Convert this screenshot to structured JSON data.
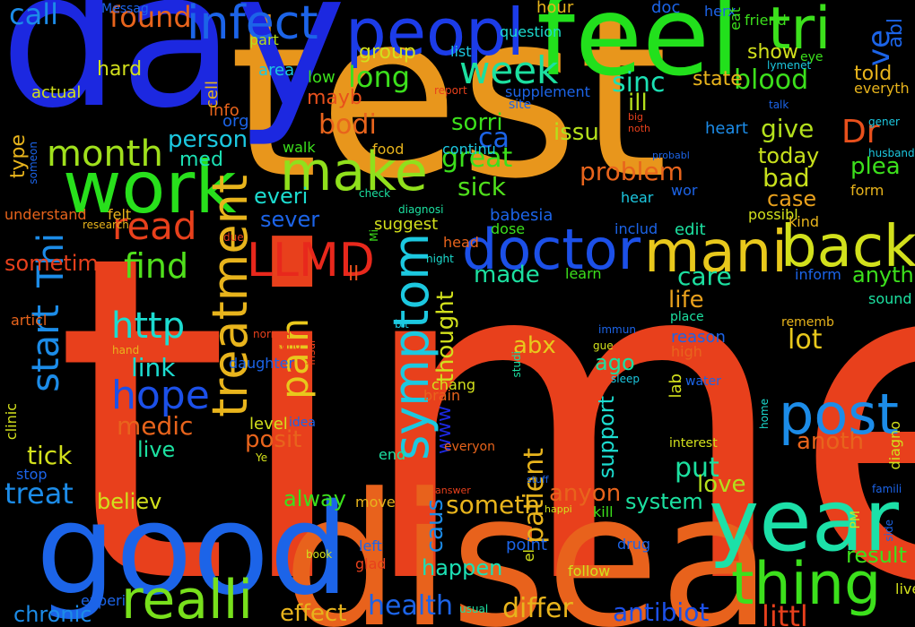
{
  "words": [
    {
      "text": "time",
      "color": "#e8401c"
    },
    {
      "text": "test",
      "color": "#e8961c"
    },
    {
      "text": "day",
      "color": "#1c28e0"
    },
    {
      "text": "disea",
      "color": "#e8621c"
    },
    {
      "text": "good",
      "color": "#1c64e8"
    },
    {
      "text": "feel",
      "color": "#22e01c"
    },
    {
      "text": "year",
      "color": "#1ce0a8"
    },
    {
      "text": "work",
      "color": "#28e01c"
    },
    {
      "text": "peopl",
      "color": "#1c3ce8"
    },
    {
      "text": "tri",
      "color": "#3ce01c"
    },
    {
      "text": "infect",
      "color": "#1c64e8"
    },
    {
      "text": "treatment",
      "color": "#e8b41c"
    },
    {
      "text": "make",
      "color": "#90e01c"
    },
    {
      "text": "doctor",
      "color": "#1c50e8"
    },
    {
      "text": "mani",
      "color": "#e8c81c"
    },
    {
      "text": "back",
      "color": "#d2e01c"
    },
    {
      "text": "symptom",
      "color": "#1cc8e0"
    },
    {
      "text": "LLMD",
      "color": "#e8281c"
    },
    {
      "text": "post",
      "color": "#1c8ce8"
    },
    {
      "text": "thing",
      "color": "#3ce01c"
    },
    {
      "text": "realli",
      "color": "#78e01c"
    },
    {
      "text": "hope",
      "color": "#1c50e8"
    },
    {
      "text": "week",
      "color": "#1ce0a0"
    },
    {
      "text": "month",
      "color": "#a0e01c"
    },
    {
      "text": "start",
      "color": "#1c8ce8"
    },
    {
      "text": "read",
      "color": "#e8401c"
    },
    {
      "text": "pain",
      "color": "#e8c81c"
    },
    {
      "text": "find",
      "color": "#50e01c"
    },
    {
      "text": "http",
      "color": "#1cdcd0"
    },
    {
      "text": "Dr",
      "color": "#e8501c"
    },
    {
      "text": "ve",
      "color": "#1c64e8"
    },
    {
      "text": "found",
      "color": "#e8641c"
    },
    {
      "text": "call",
      "color": "#1c8ce8"
    },
    {
      "text": "long",
      "color": "#3ce01c"
    },
    {
      "text": "blood",
      "color": "#3ce01c"
    },
    {
      "text": "sinc",
      "color": "#1ce0b4"
    },
    {
      "text": "great",
      "color": "#3ce01c"
    },
    {
      "text": "bodi",
      "color": "#e8641c"
    },
    {
      "text": "give",
      "color": "#b4e01c"
    },
    {
      "text": "bad",
      "color": "#c8e01c"
    },
    {
      "text": "problem",
      "color": "#e8641c"
    },
    {
      "text": "sick",
      "color": "#50e01c"
    },
    {
      "text": "ca",
      "color": "#1c64e8"
    },
    {
      "text": "sorri",
      "color": "#3ce01c"
    },
    {
      "text": "issu",
      "color": "#b4e01c"
    },
    {
      "text": "plea",
      "color": "#3ce01c"
    },
    {
      "text": "case",
      "color": "#e8a01c"
    },
    {
      "text": "today",
      "color": "#c8e01c"
    },
    {
      "text": "person",
      "color": "#1cc8e0"
    },
    {
      "text": "med",
      "color": "#1ce0b4"
    },
    {
      "text": "everi",
      "color": "#1cdcd0"
    },
    {
      "text": "sever",
      "color": "#1c64e8"
    },
    {
      "text": "Thi",
      "color": "#1c8ce8"
    },
    {
      "text": "link",
      "color": "#1cdcd0"
    },
    {
      "text": "medic",
      "color": "#e8641c"
    },
    {
      "text": "tick",
      "color": "#d2e01c"
    },
    {
      "text": "treat",
      "color": "#1c8ce8"
    },
    {
      "text": "live",
      "color": "#1ce0a0"
    },
    {
      "text": "posit",
      "color": "#e8641c"
    },
    {
      "text": "lot",
      "color": "#e8c81c"
    },
    {
      "text": "care",
      "color": "#1ce0a0"
    },
    {
      "text": "life",
      "color": "#e8a01c"
    },
    {
      "text": "made",
      "color": "#1ce0a0"
    },
    {
      "text": "anyth",
      "color": "#3ce01c"
    },
    {
      "text": "abx",
      "color": "#e8c81c"
    },
    {
      "text": "ago",
      "color": "#1ce0a0"
    },
    {
      "text": "patient",
      "color": "#e8b41c"
    },
    {
      "text": "support",
      "color": "#1cdcd0"
    },
    {
      "text": "put",
      "color": "#1ce0a0"
    },
    {
      "text": "anoth",
      "color": "#e8641c"
    },
    {
      "text": "love",
      "color": "#b4e01c"
    },
    {
      "text": "result",
      "color": "#3ce01c"
    },
    {
      "text": "anyon",
      "color": "#e8641c"
    },
    {
      "text": "someth",
      "color": "#e8b41c"
    },
    {
      "text": "system",
      "color": "#1ce0a0"
    },
    {
      "text": "caus",
      "color": "#1c8ce8"
    },
    {
      "text": "differ",
      "color": "#e8b41c"
    },
    {
      "text": "antibiot",
      "color": "#1c50e8"
    },
    {
      "text": "health",
      "color": "#1c64e8"
    },
    {
      "text": "effect",
      "color": "#e8b41c"
    },
    {
      "text": "happen",
      "color": "#1ce0b4"
    },
    {
      "text": "chronic",
      "color": "#1c8ce8"
    },
    {
      "text": "littl",
      "color": "#e8401c"
    },
    {
      "text": "believ",
      "color": "#d2e01c"
    },
    {
      "text": "alway",
      "color": "#3ce01c"
    },
    {
      "text": "thought",
      "color": "#d2e01c"
    },
    {
      "text": "www",
      "color": "#1c28e0"
    },
    {
      "text": "hard",
      "color": "#d2e01c"
    },
    {
      "text": "group",
      "color": "#d2e01c"
    },
    {
      "text": "state",
      "color": "#e8b41c"
    },
    {
      "text": "ill",
      "color": "#b4e01c"
    },
    {
      "text": "heart",
      "color": "#1c8ce8"
    },
    {
      "text": "show",
      "color": "#d2e01c"
    },
    {
      "text": "told",
      "color": "#e8b41c"
    },
    {
      "text": "abl",
      "color": "#1c64e8"
    },
    {
      "text": "mayb",
      "color": "#e8501c"
    },
    {
      "text": "actual",
      "color": "#d2e01c"
    },
    {
      "text": "cell",
      "color": "#e8b41c"
    },
    {
      "text": "info",
      "color": "#e8641c"
    },
    {
      "text": "org",
      "color": "#1c64e8"
    },
    {
      "text": "area",
      "color": "#1cc8e0"
    },
    {
      "text": "low",
      "color": "#3ce01c"
    },
    {
      "text": "part",
      "color": "#b4e01c"
    },
    {
      "text": "list",
      "color": "#1cc8e0"
    },
    {
      "text": "question",
      "color": "#1cdcd0"
    },
    {
      "text": "hour",
      "color": "#e8b41c"
    },
    {
      "text": "doc",
      "color": "#1c64e8"
    },
    {
      "text": "herx",
      "color": "#1c64e8"
    },
    {
      "text": "eat",
      "color": "#3ce01c"
    },
    {
      "text": "friend",
      "color": "#3ce01c"
    },
    {
      "text": "eye",
      "color": "#3ce01c"
    },
    {
      "text": "lymenet",
      "color": "#1cc8e0"
    },
    {
      "text": "report",
      "color": "#e8401c"
    },
    {
      "text": "supplement",
      "color": "#1c64e8"
    },
    {
      "text": "site",
      "color": "#1c64e8"
    },
    {
      "text": "everyth",
      "color": "#e8b41c"
    },
    {
      "text": "talk",
      "color": "#1c64e8"
    },
    {
      "text": "big",
      "color": "#e8401c"
    },
    {
      "text": "noth",
      "color": "#e8401c"
    },
    {
      "text": "gener",
      "color": "#1cc8e0"
    },
    {
      "text": "husband",
      "color": "#1cc8e0"
    },
    {
      "text": "continu",
      "color": "#1cc8e0"
    },
    {
      "text": "food",
      "color": "#e8b41c"
    },
    {
      "text": "walk",
      "color": "#3ce01c"
    },
    {
      "text": "probabl",
      "color": "#1c64e8"
    },
    {
      "text": "wor",
      "color": "#1c64e8"
    },
    {
      "text": "hear",
      "color": "#1cc8e0"
    },
    {
      "text": "form",
      "color": "#e8b41c"
    },
    {
      "text": "possibl",
      "color": "#d2e01c"
    },
    {
      "text": "kind",
      "color": "#e8b41c"
    },
    {
      "text": "edit",
      "color": "#1ce0a0"
    },
    {
      "text": "includ",
      "color": "#1c64e8"
    },
    {
      "text": "babesia",
      "color": "#1c64e8"
    },
    {
      "text": "dose",
      "color": "#3ce01c"
    },
    {
      "text": "suggest",
      "color": "#d2e01c"
    },
    {
      "text": "check",
      "color": "#1ce0a0"
    },
    {
      "text": "diagnosi",
      "color": "#1ce0a0"
    },
    {
      "text": "felt",
      "color": "#e8b41c"
    },
    {
      "text": "understand",
      "color": "#e8641c"
    },
    {
      "text": "research",
      "color": "#e8b41c"
    },
    {
      "text": "due",
      "color": "#e8401c"
    },
    {
      "text": "type",
      "color": "#e8b41c"
    },
    {
      "text": "someon",
      "color": "#1c64e8"
    },
    {
      "text": "Messag",
      "color": "#1c64e8"
    },
    {
      "text": "sometim",
      "color": "#e8401c"
    },
    {
      "text": "ll",
      "color": "#e8501c"
    },
    {
      "text": "Mi",
      "color": "#3ce01c"
    },
    {
      "text": "head",
      "color": "#e8641c"
    },
    {
      "text": "night",
      "color": "#1cdcd0"
    },
    {
      "text": "learn",
      "color": "#3ce01c"
    },
    {
      "text": "inform",
      "color": "#1c64e8"
    },
    {
      "text": "sound",
      "color": "#1ce0a0"
    },
    {
      "text": "place",
      "color": "#1ce0a0"
    },
    {
      "text": "rememb",
      "color": "#e8b41c"
    },
    {
      "text": "immun",
      "color": "#1c64e8"
    },
    {
      "text": "gue",
      "color": "#d2e01c"
    },
    {
      "text": "reason",
      "color": "#1c64e8"
    },
    {
      "text": "high",
      "color": "#e8641c"
    },
    {
      "text": "sleep",
      "color": "#1cc8e0"
    },
    {
      "text": "bit",
      "color": "#1cc8e0"
    },
    {
      "text": "send",
      "color": "#e8401c"
    },
    {
      "text": "articl",
      "color": "#e8641c"
    },
    {
      "text": "normal",
      "color": "#e8401c"
    },
    {
      "text": "hand",
      "color": "#e8b41c"
    },
    {
      "text": "daughter",
      "color": "#1c64e8"
    },
    {
      "text": "insur",
      "color": "#e8401c"
    },
    {
      "text": "chang",
      "color": "#d2e01c"
    },
    {
      "text": "studi",
      "color": "#1ce0a0"
    },
    {
      "text": "water",
      "color": "#1c64e8"
    },
    {
      "text": "lab",
      "color": "#d2e01c"
    },
    {
      "text": "brain",
      "color": "#e8641c"
    },
    {
      "text": "home",
      "color": "#1cdcd0"
    },
    {
      "text": "idea",
      "color": "#1c64e8"
    },
    {
      "text": "level",
      "color": "#d2e01c"
    },
    {
      "text": "Ye",
      "color": "#d2e01c"
    },
    {
      "text": "clinic",
      "color": "#d2e01c"
    },
    {
      "text": "stop",
      "color": "#1c64e8"
    },
    {
      "text": "everyon",
      "color": "#e8641c"
    },
    {
      "text": "end",
      "color": "#1ce0a0"
    },
    {
      "text": "interest",
      "color": "#d2e01c"
    },
    {
      "text": "diagno",
      "color": "#d2e01c"
    },
    {
      "text": "famili",
      "color": "#1c64e8"
    },
    {
      "text": "answer",
      "color": "#e8401c"
    },
    {
      "text": "stuff",
      "color": "#1c64e8"
    },
    {
      "text": "move",
      "color": "#e8b41c"
    },
    {
      "text": "happi",
      "color": "#d2e01c"
    },
    {
      "text": "kill",
      "color": "#3ce01c"
    },
    {
      "text": "PM",
      "color": "#d2e01c"
    },
    {
      "text": "side",
      "color": "#1c64e8"
    },
    {
      "text": "left",
      "color": "#1c64e8"
    },
    {
      "text": "book",
      "color": "#d2e01c"
    },
    {
      "text": "glad",
      "color": "#e8401c"
    },
    {
      "text": "point",
      "color": "#1c64e8"
    },
    {
      "text": "el",
      "color": "#d2e01c"
    },
    {
      "text": "drug",
      "color": "#1c64e8"
    },
    {
      "text": "follow",
      "color": "#d2e01c"
    },
    {
      "text": "experi",
      "color": "#1c64e8"
    },
    {
      "text": "usual",
      "color": "#1ce0a0"
    },
    {
      "text": "liver",
      "color": "#d2e01c"
    },
    {
      "text": "IV",
      "color": "#d2e01c"
    }
  ]
}
